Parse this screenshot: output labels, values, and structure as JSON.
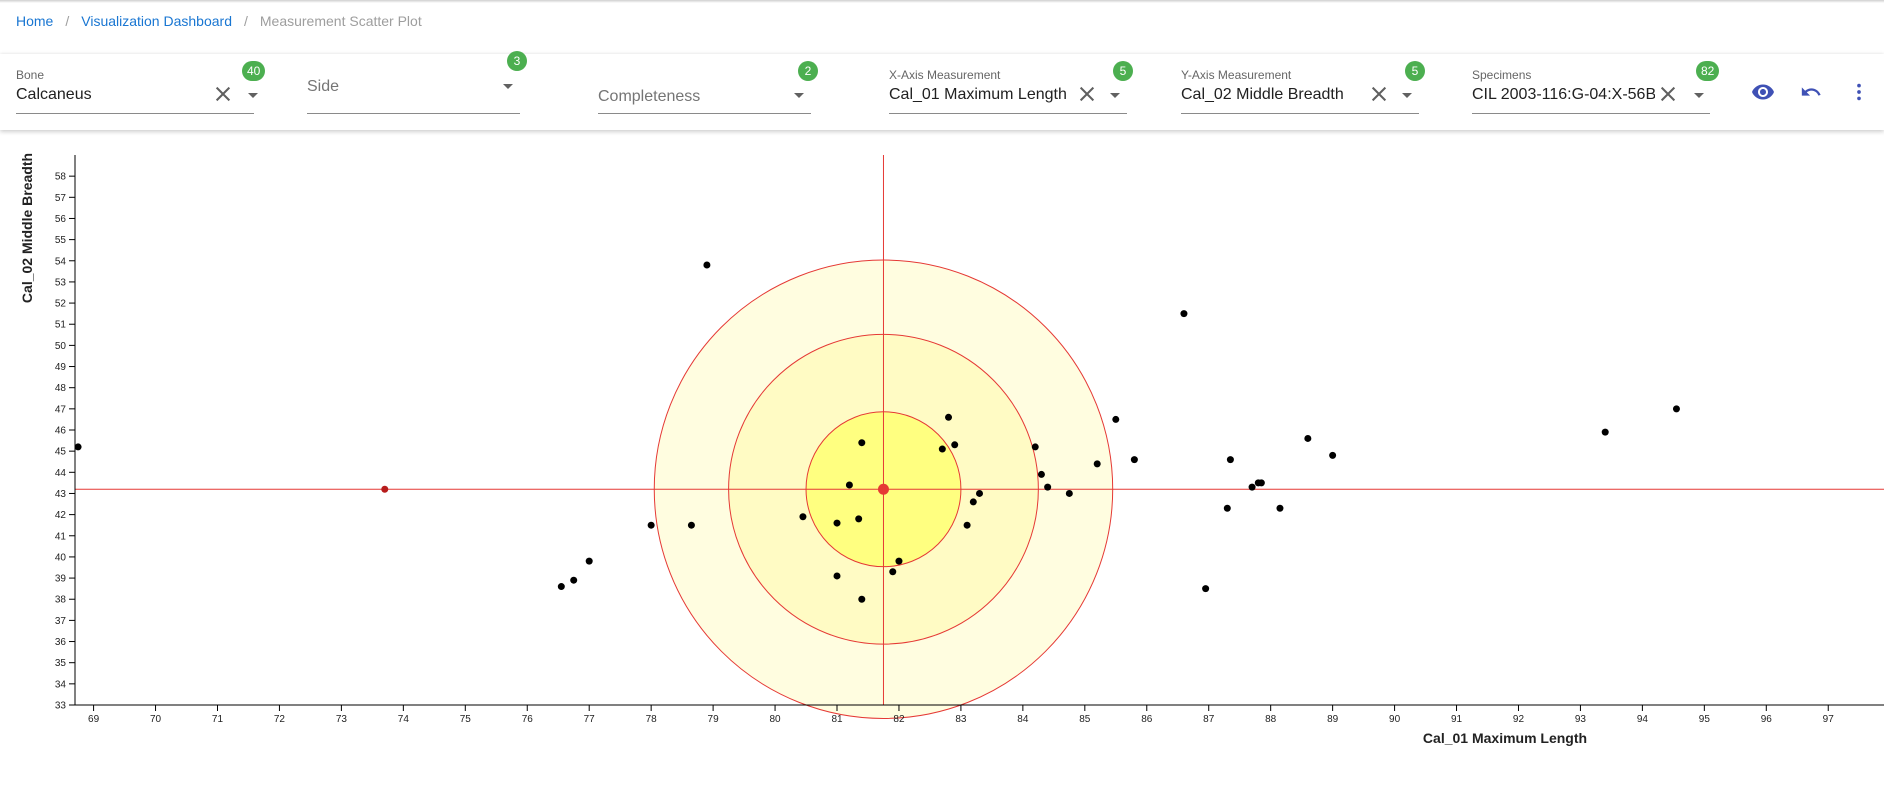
{
  "breadcrumb": {
    "home": "Home",
    "dashboard": "Visualization Dashboard",
    "current": "Measurement Scatter Plot",
    "separator": "/"
  },
  "filters": {
    "bone": {
      "label": "Bone",
      "value": "Calcaneus",
      "count": "40"
    },
    "side": {
      "placeholder": "Side",
      "count": "3"
    },
    "completeness": {
      "placeholder": "Completeness",
      "count": "2"
    },
    "x_measurement": {
      "label": "X-Axis Measurement",
      "value": "Cal_01 Maximum Length",
      "count": "5"
    },
    "y_measurement": {
      "label": "Y-Axis Measurement",
      "value": "Cal_02 Middle Breadth",
      "count": "5"
    },
    "specimens": {
      "label": "Specimens",
      "value": "CIL 2003-116:G-04:X-56B:",
      "count": "82"
    }
  },
  "icons": {
    "visibility": "eye-icon",
    "reset": "undo-icon",
    "menu": "more-vertical-icon"
  },
  "colors": {
    "link": "#1976d2",
    "badge": "#4caf50",
    "crosshair": "#e53935",
    "target_fill_inner": "#ffff80",
    "target_fill_outer": "#fffde0",
    "point": "#000000"
  },
  "chart_data": {
    "type": "scatter",
    "xlabel": "Cal_01 Maximum Length",
    "ylabel": "Cal_02 Middle Breadth",
    "xlim": [
      68.7,
      97.9
    ],
    "ylim": [
      33,
      59
    ],
    "x_ticks": [
      69,
      70,
      71,
      72,
      73,
      74,
      75,
      76,
      77,
      78,
      79,
      80,
      81,
      82,
      83,
      84,
      85,
      86,
      87,
      88,
      89,
      90,
      91,
      92,
      93,
      94,
      95,
      96,
      97
    ],
    "y_ticks": [
      33,
      34,
      35,
      36,
      37,
      38,
      39,
      40,
      41,
      42,
      43,
      44,
      45,
      46,
      47,
      48,
      49,
      50,
      51,
      52,
      53,
      54,
      55,
      56,
      57,
      58
    ],
    "grid": false,
    "selected": {
      "x": 81.75,
      "y": 43.2
    },
    "reference_point": {
      "x": 73.7,
      "y": 43.2
    },
    "target_rings": [
      1.25,
      2.5,
      3.7
    ],
    "points": [
      [
        68.75,
        45.2
      ],
      [
        76.55,
        38.6
      ],
      [
        76.75,
        38.9
      ],
      [
        77.0,
        39.8
      ],
      [
        78.0,
        41.5
      ],
      [
        78.65,
        41.5
      ],
      [
        78.9,
        53.8
      ],
      [
        80.45,
        41.9
      ],
      [
        81.0,
        41.6
      ],
      [
        81.0,
        39.1
      ],
      [
        81.2,
        43.4
      ],
      [
        81.35,
        41.8
      ],
      [
        81.4,
        45.4
      ],
      [
        81.4,
        38.0
      ],
      [
        81.9,
        39.3
      ],
      [
        82.0,
        39.8
      ],
      [
        82.7,
        45.1
      ],
      [
        82.8,
        46.6
      ],
      [
        82.9,
        45.3
      ],
      [
        83.1,
        41.5
      ],
      [
        83.2,
        42.6
      ],
      [
        83.3,
        43.0
      ],
      [
        84.2,
        45.2
      ],
      [
        84.3,
        43.9
      ],
      [
        84.4,
        43.3
      ],
      [
        84.75,
        43.0
      ],
      [
        85.2,
        44.4
      ],
      [
        85.5,
        46.5
      ],
      [
        85.8,
        44.6
      ],
      [
        86.6,
        51.5
      ],
      [
        86.95,
        38.5
      ],
      [
        87.3,
        42.3
      ],
      [
        87.35,
        44.6
      ],
      [
        87.7,
        43.3
      ],
      [
        87.8,
        43.5
      ],
      [
        87.85,
        43.5
      ],
      [
        88.15,
        42.3
      ],
      [
        88.6,
        45.6
      ],
      [
        89.0,
        44.8
      ],
      [
        93.4,
        45.9
      ],
      [
        94.55,
        47.0
      ]
    ]
  }
}
